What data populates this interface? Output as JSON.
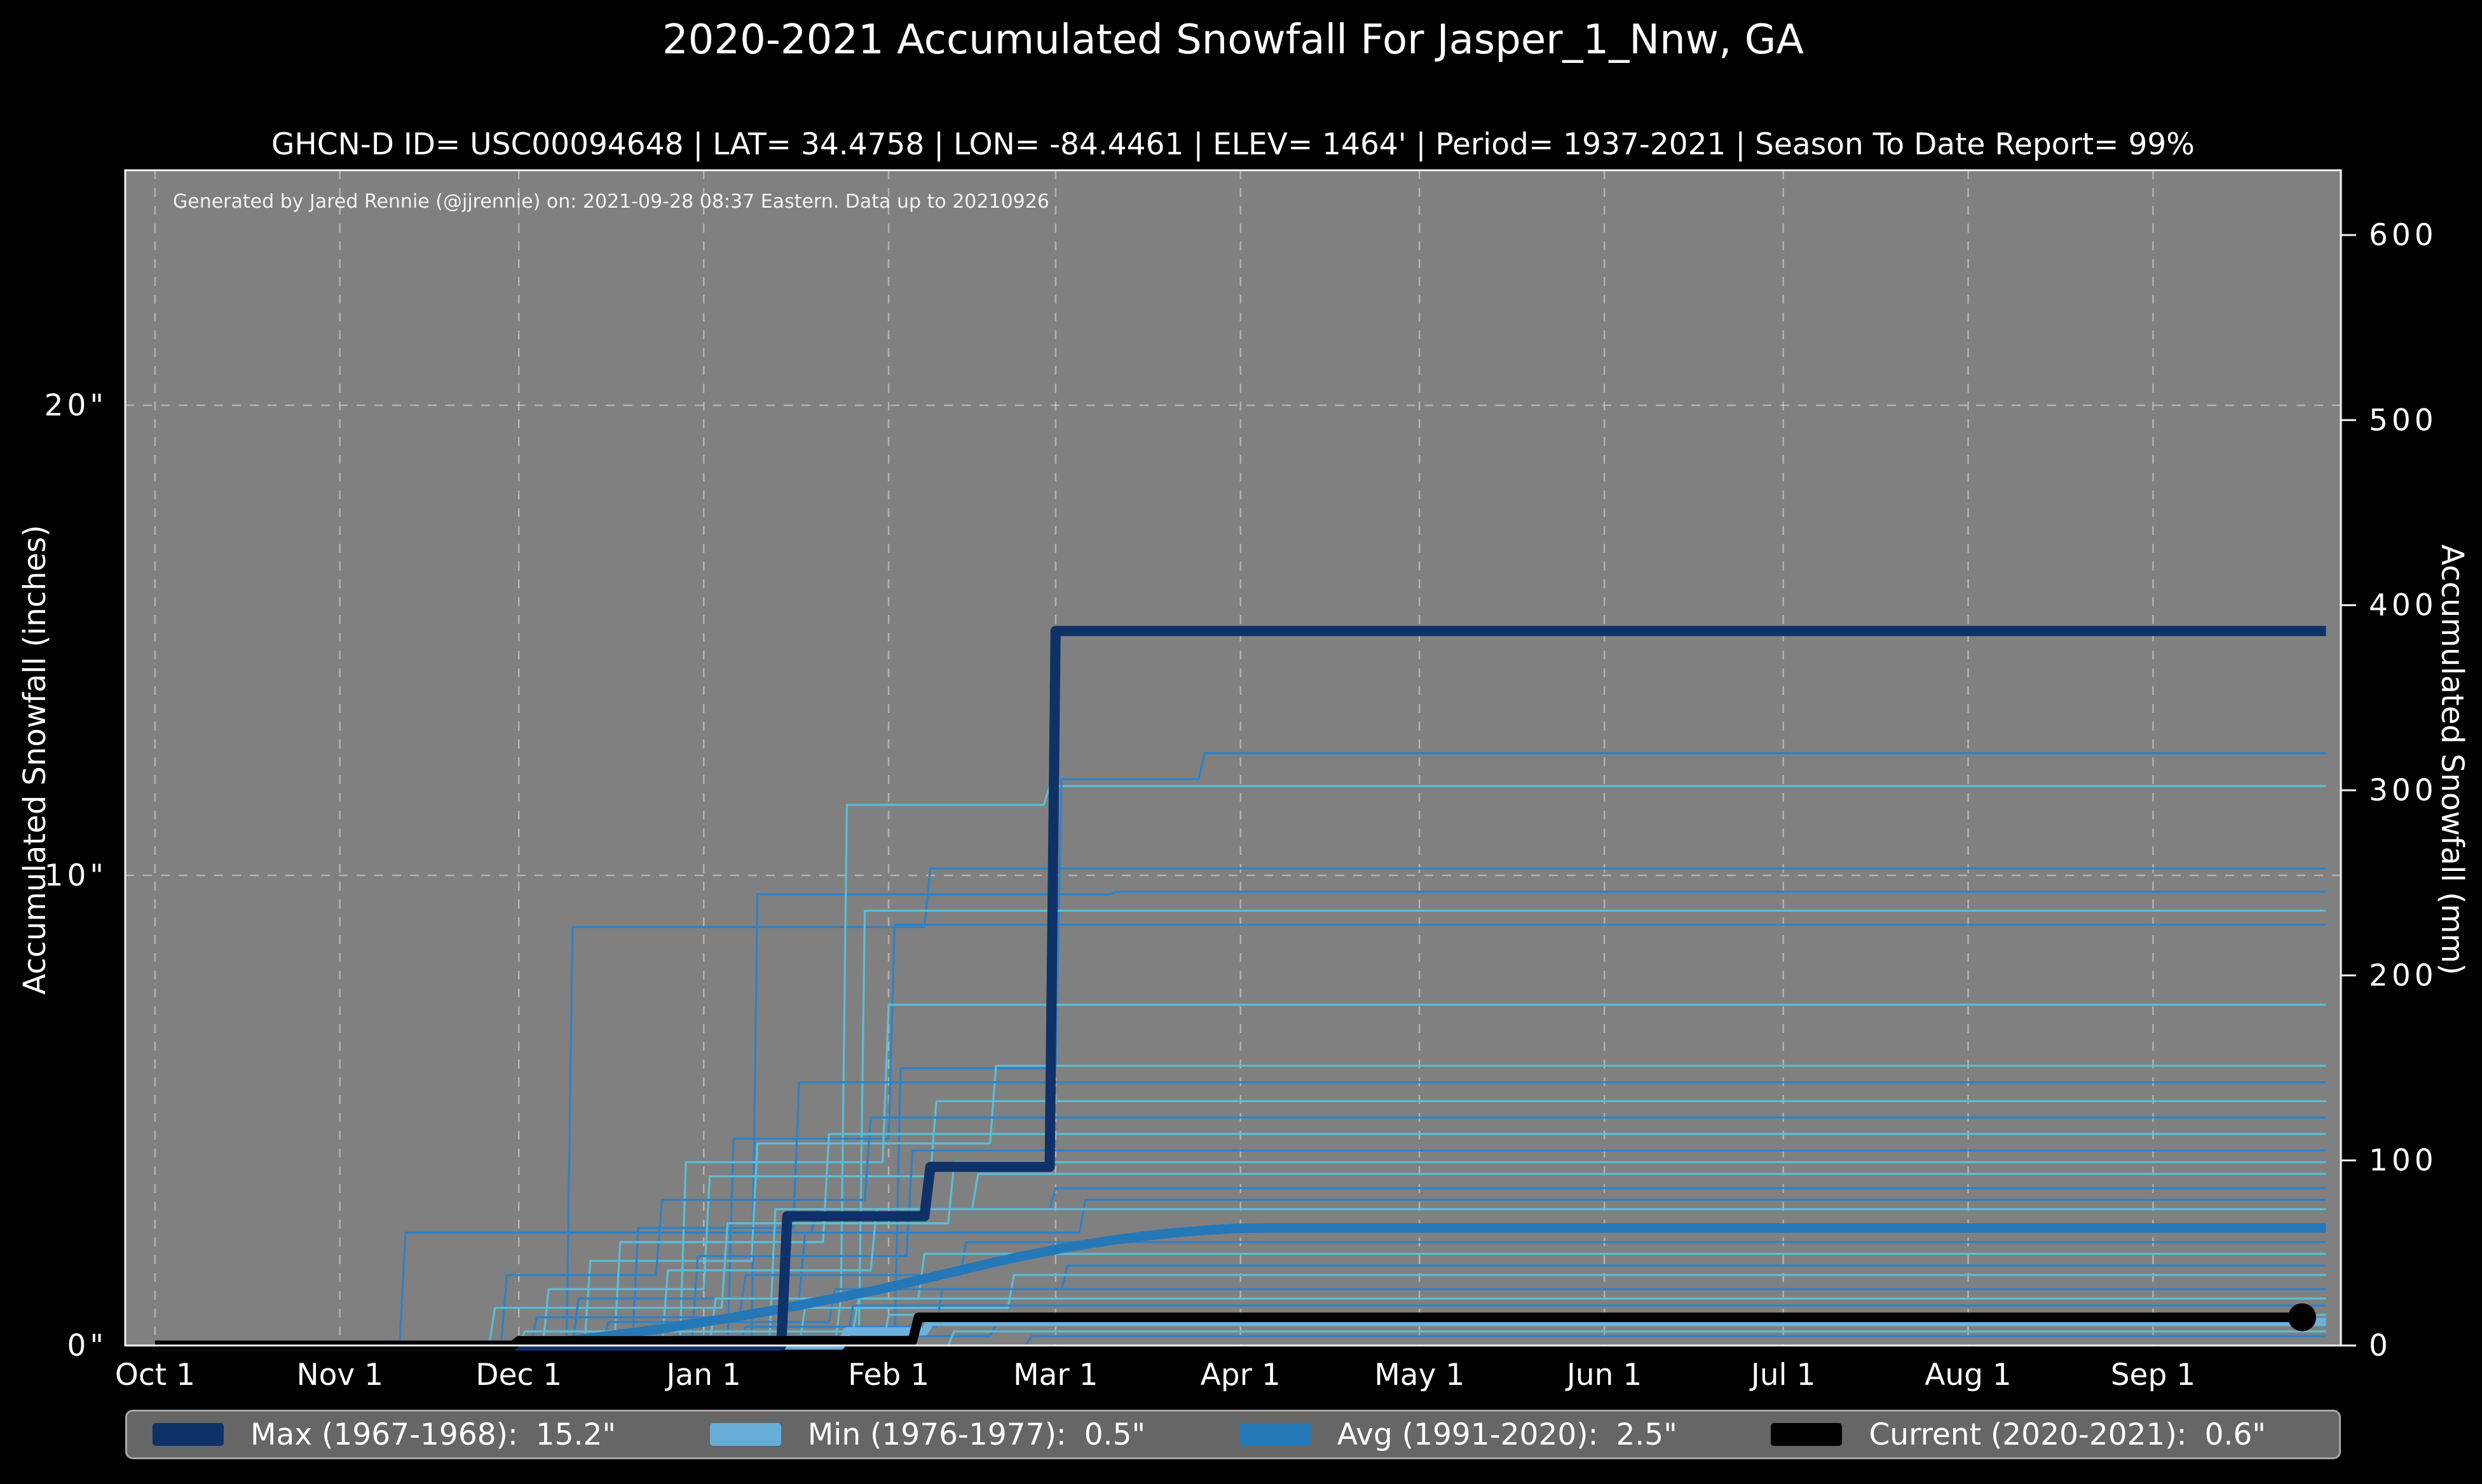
{
  "header": {
    "title": "2020-2021 Accumulated Snowfall For Jasper_1_Nnw, GA",
    "subtitle": "GHCN-D ID= USC00094648 | LAT= 34.4758 | LON= -84.4461 | ELEV= 1464' | Period= 1937-2021 | Season To Date Report= 99%"
  },
  "attribution": "Generated by Jared Rennie (@jjrennie) on: 2021-09-28 08:37 Eastern. Data up to 20210926",
  "axes": {
    "x": {
      "ticks": [
        {
          "day": 0,
          "label": "Oct 1"
        },
        {
          "day": 31,
          "label": "Nov 1"
        },
        {
          "day": 61,
          "label": "Dec 1"
        },
        {
          "day": 92,
          "label": "Jan 1"
        },
        {
          "day": 123,
          "label": "Feb 1"
        },
        {
          "day": 151,
          "label": "Mar 1"
        },
        {
          "day": 182,
          "label": "Apr 1"
        },
        {
          "day": 212,
          "label": "May 1"
        },
        {
          "day": 243,
          "label": "Jun 1"
        },
        {
          "day": 273,
          "label": "Jul 1"
        },
        {
          "day": 304,
          "label": "Aug 1"
        },
        {
          "day": 335,
          "label": "Sep 1"
        }
      ]
    },
    "y_left": {
      "label": "Accumulated Snowfall (inches)",
      "ticks": [
        {
          "v": 0,
          "label": "0\""
        },
        {
          "v": 10,
          "label": "10\""
        },
        {
          "v": 20,
          "label": "20\""
        }
      ]
    },
    "y_right": {
      "label": "Accumulated Snowfall (mm)",
      "ticks": [
        {
          "v": 0,
          "label": "0"
        },
        {
          "v": 100,
          "label": "100"
        },
        {
          "v": 200,
          "label": "200"
        },
        {
          "v": 300,
          "label": "300"
        },
        {
          "v": 400,
          "label": "400"
        },
        {
          "v": 500,
          "label": "500"
        },
        {
          "v": 600,
          "label": "600"
        }
      ]
    }
  },
  "legend": {
    "items": [
      {
        "name": "Max (1967-1968):",
        "value": "15.2\"",
        "color": "#0e3268"
      },
      {
        "name": "Min (1976-1977):",
        "value": "0.5\"",
        "color": "#66aed8"
      },
      {
        "name": "Avg (1991-2020):",
        "value": "2.5\"",
        "color": "#2478b8"
      },
      {
        "name": "Current (2020-2021):",
        "value": "0.6\"",
        "color": "#000000"
      }
    ]
  },
  "colors": {
    "background": "#000000",
    "plot_bg": "#808080",
    "grid": "#d9d9d9",
    "spine": "#f2f2f2",
    "text": "#ffffff",
    "max": "#0e3268",
    "min": "#6cb2dd",
    "avg": "#2478b8",
    "current": "#000000",
    "thin_light": "#5abed7",
    "thin_mid": "#2d82c8"
  },
  "chart_data": {
    "type": "line",
    "title": "2020-2021 Accumulated Snowfall For Jasper_1_Nnw, GA",
    "xlabel": "",
    "ylabel_left": "Accumulated Snowfall (inches)",
    "ylabel_right": "Accumulated Snowfall (mm)",
    "x_unit": "days_since_Oct_1",
    "xlim": [
      -5,
      366.5
    ],
    "ylim_inches": [
      0,
      25
    ],
    "ylim_mm": [
      0,
      635
    ],
    "grid": "dashed, monthly verticals + horizontals at 10 and 20 inches",
    "legend_position": "bottom bar",
    "series": [
      {
        "name": "Max (1967-1968)",
        "total_inches": 15.2,
        "style": {
          "color": "#0e3268",
          "width": 16
        },
        "points": [
          [
            0,
            0
          ],
          [
            105,
            0
          ],
          [
            106,
            2.75
          ],
          [
            129,
            2.75
          ],
          [
            130,
            3.8
          ],
          [
            150,
            3.8
          ],
          [
            151,
            15.2
          ],
          [
            364,
            15.2
          ]
        ]
      },
      {
        "name": "Min (1976-1977)",
        "total_inches": 0.5,
        "style": {
          "color": "#6cb2dd",
          "width": 13
        },
        "points": [
          [
            0,
            0
          ],
          [
            115,
            0
          ],
          [
            116,
            0.3
          ],
          [
            129,
            0.3
          ],
          [
            130,
            0.5
          ],
          [
            364,
            0.5
          ]
        ]
      },
      {
        "name": "Avg (1991-2020)",
        "total_inches": 2.5,
        "style": {
          "color": "#2478b8",
          "width": 15
        },
        "points": [
          [
            0,
            0
          ],
          [
            62,
            0
          ],
          [
            65,
            0.05
          ],
          [
            69,
            0.1
          ],
          [
            73,
            0.16
          ],
          [
            77,
            0.22
          ],
          [
            81,
            0.29
          ],
          [
            85,
            0.36
          ],
          [
            89,
            0.44
          ],
          [
            93,
            0.52
          ],
          [
            97,
            0.6
          ],
          [
            101,
            0.69
          ],
          [
            105,
            0.78
          ],
          [
            109,
            0.88
          ],
          [
            113,
            0.98
          ],
          [
            117,
            1.08
          ],
          [
            121,
            1.18
          ],
          [
            125,
            1.3
          ],
          [
            129,
            1.42
          ],
          [
            133,
            1.54
          ],
          [
            137,
            1.66
          ],
          [
            141,
            1.78
          ],
          [
            145,
            1.89
          ],
          [
            149,
            1.99
          ],
          [
            153,
            2.09
          ],
          [
            157,
            2.17
          ],
          [
            161,
            2.25
          ],
          [
            166,
            2.33
          ],
          [
            171,
            2.4
          ],
          [
            176,
            2.45
          ],
          [
            181,
            2.49
          ],
          [
            186,
            2.5
          ],
          [
            364,
            2.5
          ]
        ]
      },
      {
        "name": "Current (2020-2021)",
        "total_inches": 0.6,
        "style": {
          "color": "#000000",
          "width": 15
        },
        "end_marker": {
          "day": 360,
          "value": 0.6,
          "radius": 22
        },
        "points": [
          [
            0,
            0
          ],
          [
            60,
            0
          ],
          [
            61,
            0.1
          ],
          [
            127,
            0.1
          ],
          [
            128,
            0.6
          ],
          [
            360,
            0.6
          ]
        ]
      }
    ],
    "background_years": [
      {
        "c": "thin_mid",
        "points": [
          [
            41,
            0
          ],
          [
            42,
            2.4
          ],
          [
            110,
            2.4
          ],
          [
            111,
            2.9
          ],
          [
            150,
            2.9
          ],
          [
            151,
            3.35
          ],
          [
            364,
            3.35
          ]
        ]
      },
      {
        "c": "thin_mid",
        "points": [
          [
            69,
            0
          ],
          [
            70,
            8.9
          ],
          [
            129,
            8.9
          ],
          [
            130,
            10.15
          ],
          [
            364,
            10.15
          ]
        ]
      },
      {
        "c": "thin_mid",
        "points": [
          [
            100,
            0
          ],
          [
            101,
            9.6
          ],
          [
            160,
            9.6
          ],
          [
            161,
            9.65
          ],
          [
            364,
            9.65
          ]
        ]
      },
      {
        "c": "thin_light",
        "points": [
          [
            114,
            0
          ],
          [
            115,
            1.0
          ],
          [
            116,
            11.5
          ],
          [
            149,
            11.5
          ],
          [
            150,
            11.9
          ],
          [
            364,
            11.9
          ]
        ]
      },
      {
        "c": "thin_mid",
        "points": [
          [
            124,
            0
          ],
          [
            125,
            5.9
          ],
          [
            151,
            5.9
          ],
          [
            152,
            12.05
          ],
          [
            175,
            12.05
          ],
          [
            176,
            12.6
          ],
          [
            364,
            12.6
          ]
        ]
      },
      {
        "c": "thin_light",
        "points": [
          [
            118,
            0
          ],
          [
            119,
            9.25
          ],
          [
            364,
            9.25
          ]
        ]
      },
      {
        "c": "thin_mid",
        "points": [
          [
            96,
            0
          ],
          [
            97,
            4.4
          ],
          [
            123,
            4.4
          ],
          [
            124,
            8.95
          ],
          [
            364,
            8.95
          ]
        ]
      },
      {
        "c": "thin_light",
        "points": [
          [
            88,
            0
          ],
          [
            89,
            3.9
          ],
          [
            122,
            3.9
          ],
          [
            123,
            7.25
          ],
          [
            364,
            7.25
          ]
        ]
      },
      {
        "c": "thin_light",
        "points": [
          [
            72,
            0
          ],
          [
            73,
            1.8
          ],
          [
            100,
            1.8
          ],
          [
            101,
            4.3
          ],
          [
            140,
            4.3
          ],
          [
            141,
            5.95
          ],
          [
            364,
            5.95
          ]
        ]
      },
      {
        "c": "thin_mid",
        "points": [
          [
            80,
            0
          ],
          [
            81,
            2.5
          ],
          [
            107,
            2.5
          ],
          [
            108,
            5.6
          ],
          [
            364,
            5.6
          ]
        ]
      },
      {
        "c": "thin_light",
        "points": [
          [
            65,
            0
          ],
          [
            66,
            1.2
          ],
          [
            92,
            1.2
          ],
          [
            93,
            3.6
          ],
          [
            130,
            3.6
          ],
          [
            131,
            5.2
          ],
          [
            364,
            5.2
          ]
        ]
      },
      {
        "c": "thin_mid",
        "points": [
          [
            58,
            0
          ],
          [
            59,
            1.5
          ],
          [
            84,
            1.5
          ],
          [
            85,
            3.1
          ],
          [
            119,
            3.1
          ],
          [
            120,
            4.85
          ],
          [
            364,
            4.85
          ]
        ]
      },
      {
        "c": "thin_light",
        "points": [
          [
            77,
            0
          ],
          [
            78,
            2.2
          ],
          [
            112,
            2.2
          ],
          [
            113,
            4.5
          ],
          [
            364,
            4.5
          ]
        ]
      },
      {
        "c": "thin_mid",
        "points": [
          [
            90,
            0
          ],
          [
            91,
            1.9
          ],
          [
            126,
            1.9
          ],
          [
            127,
            4.15
          ],
          [
            364,
            4.15
          ]
        ]
      },
      {
        "c": "thin_light",
        "points": [
          [
            56,
            0
          ],
          [
            57,
            0.8
          ],
          [
            95,
            0.8
          ],
          [
            96,
            2.6
          ],
          [
            133,
            2.6
          ],
          [
            134,
            3.9
          ],
          [
            364,
            3.9
          ]
        ]
      },
      {
        "c": "thin_light",
        "points": [
          [
            103,
            0
          ],
          [
            104,
            2.9
          ],
          [
            137,
            2.9
          ],
          [
            138,
            3.65
          ],
          [
            364,
            3.65
          ]
        ]
      },
      {
        "c": "thin_mid",
        "points": [
          [
            70,
            0
          ],
          [
            71,
            1.0
          ],
          [
            108,
            1.0
          ],
          [
            109,
            2.4
          ],
          [
            155,
            2.4
          ],
          [
            156,
            3.1
          ],
          [
            364,
            3.1
          ]
        ]
      },
      {
        "c": "thin_light",
        "points": [
          [
            85,
            0
          ],
          [
            86,
            1.6
          ],
          [
            120,
            1.6
          ],
          [
            121,
            2.9
          ],
          [
            364,
            2.9
          ]
        ]
      },
      {
        "c": "thin_mid",
        "points": [
          [
            63,
            0
          ],
          [
            64,
            0.6
          ],
          [
            98,
            0.6
          ],
          [
            99,
            1.5
          ],
          [
            135,
            1.5
          ],
          [
            136,
            2.2
          ],
          [
            364,
            2.2
          ]
        ]
      },
      {
        "c": "thin_light",
        "points": [
          [
            93,
            0
          ],
          [
            94,
            1.0
          ],
          [
            128,
            1.0
          ],
          [
            129,
            1.95
          ],
          [
            364,
            1.95
          ]
        ]
      },
      {
        "c": "thin_mid",
        "points": [
          [
            75,
            0
          ],
          [
            76,
            0.5
          ],
          [
            113,
            0.5
          ],
          [
            114,
            1.2
          ],
          [
            152,
            1.2
          ],
          [
            153,
            1.7
          ],
          [
            364,
            1.7
          ]
        ]
      },
      {
        "c": "thin_light",
        "points": [
          [
            108,
            0
          ],
          [
            109,
            0.8
          ],
          [
            143,
            0.8
          ],
          [
            144,
            1.5
          ],
          [
            364,
            1.5
          ]
        ]
      },
      {
        "c": "thin_mid",
        "points": [
          [
            98,
            0
          ],
          [
            99,
            0.4
          ],
          [
            131,
            0.4
          ],
          [
            132,
            1.2
          ],
          [
            364,
            1.2
          ]
        ]
      },
      {
        "c": "thin_light",
        "points": [
          [
            61,
            0
          ],
          [
            62,
            0.3
          ],
          [
            117,
            0.3
          ],
          [
            118,
            1.0
          ],
          [
            364,
            1.0
          ]
        ]
      },
      {
        "c": "thin_mid",
        "points": [
          [
            116,
            0
          ],
          [
            117,
            0.85
          ],
          [
            364,
            0.85
          ]
        ]
      },
      {
        "c": "thin_light",
        "points": [
          [
            122,
            0
          ],
          [
            123,
            0.65
          ],
          [
            364,
            0.65
          ]
        ]
      },
      {
        "c": "thin_mid",
        "points": [
          [
            86,
            0
          ],
          [
            87,
            0.2
          ],
          [
            140,
            0.2
          ],
          [
            141,
            0.45
          ],
          [
            364,
            0.45
          ]
        ]
      },
      {
        "c": "thin_light",
        "points": [
          [
            133,
            0
          ],
          [
            134,
            0.3
          ],
          [
            364,
            0.3
          ]
        ]
      },
      {
        "c": "thin_mid",
        "points": [
          [
            146,
            0
          ],
          [
            147,
            0.2
          ],
          [
            364,
            0.2
          ]
        ]
      }
    ]
  }
}
